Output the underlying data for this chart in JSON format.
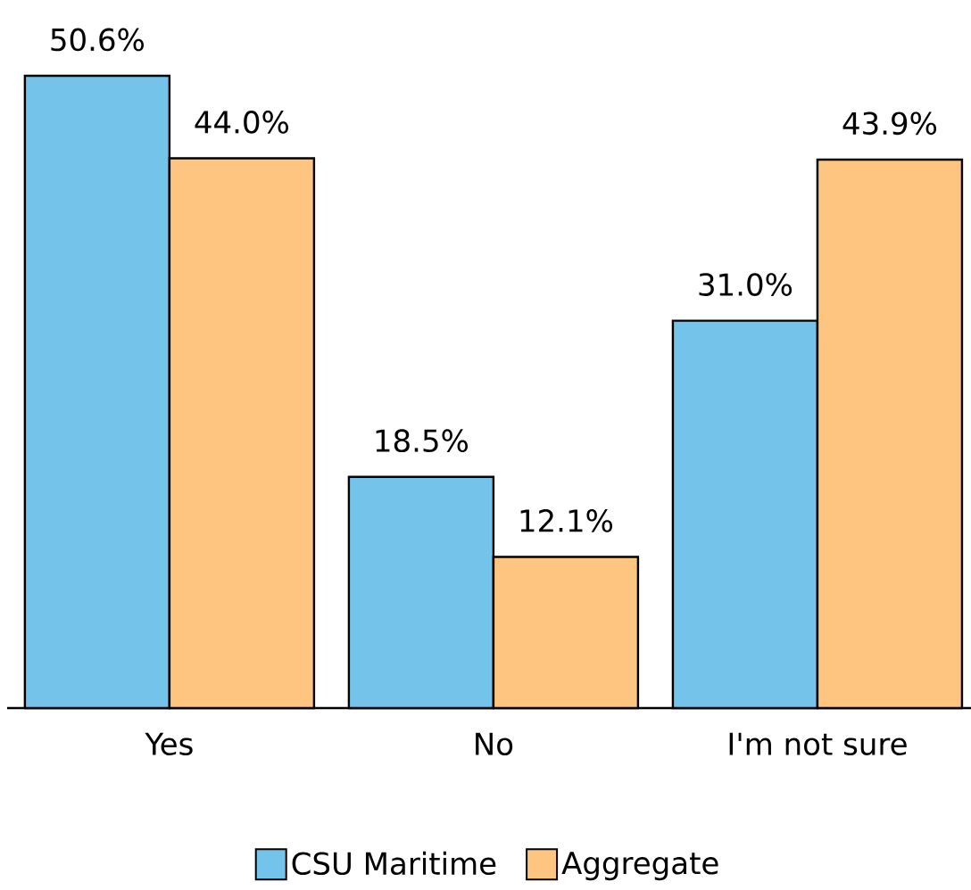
{
  "chart_data": {
    "type": "bar",
    "categories": [
      "Yes",
      "No",
      "I'm not sure"
    ],
    "series": [
      {
        "name": "CSU Maritime",
        "color": "#74c3ea",
        "values": [
          50.6,
          18.5,
          31.0
        ],
        "value_labels": [
          "50.6%",
          "18.5%",
          "31.0%"
        ]
      },
      {
        "name": "Aggregate",
        "color": "#fdc57f",
        "values": [
          44.0,
          12.1,
          43.9
        ],
        "value_labels": [
          "44.0%",
          "12.1%",
          "43.9%"
        ]
      }
    ],
    "legend": "bottom"
  }
}
